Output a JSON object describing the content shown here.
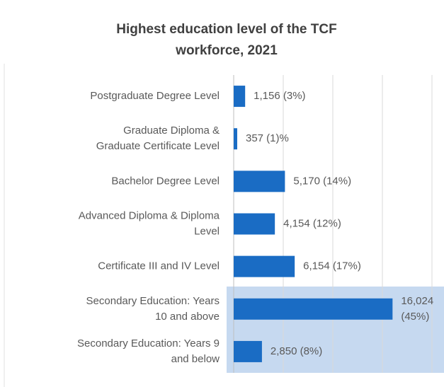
{
  "chart_data": {
    "type": "bar",
    "orientation": "horizontal",
    "title": "Highest education level of the TCF\nworkforce, 2021",
    "categories": [
      "Postgraduate Degree Level",
      "Graduate Diploma &\nGraduate Certificate Level",
      "Bachelor Degree Level",
      "Advanced Diploma & Diploma\nLevel",
      "Certificate III and IV Level",
      "Secondary Education: Years\n10 and above",
      "Secondary Education: Years 9\nand below"
    ],
    "values": [
      1156,
      357,
      5170,
      4154,
      6154,
      16024,
      2850
    ],
    "value_labels": [
      "1,156 (3%)",
      "357 (1)%",
      "5,170 (14%)",
      "4,154 (12%)",
      "6,154 (17%)",
      "16,024\n(45%)",
      "2,850 (8%)"
    ],
    "color": "#1a6cc4",
    "xlim": [
      0,
      20000
    ],
    "xticks": [
      0,
      5000,
      10000,
      15000,
      20000
    ],
    "grid": true
  }
}
